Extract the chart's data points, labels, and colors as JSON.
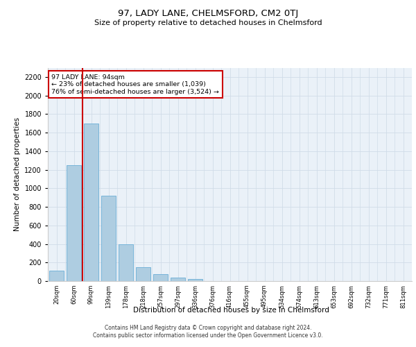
{
  "title": "97, LADY LANE, CHELMSFORD, CM2 0TJ",
  "subtitle": "Size of property relative to detached houses in Chelmsford",
  "xlabel": "Distribution of detached houses by size in Chelmsford",
  "ylabel": "Number of detached properties",
  "categories": [
    "20sqm",
    "60sqm",
    "99sqm",
    "139sqm",
    "178sqm",
    "218sqm",
    "257sqm",
    "297sqm",
    "336sqm",
    "376sqm",
    "416sqm",
    "455sqm",
    "495sqm",
    "534sqm",
    "574sqm",
    "613sqm",
    "653sqm",
    "692sqm",
    "732sqm",
    "771sqm",
    "811sqm"
  ],
  "values": [
    115,
    1250,
    1700,
    920,
    395,
    150,
    72,
    38,
    22,
    0,
    0,
    0,
    0,
    0,
    0,
    0,
    0,
    0,
    0,
    0,
    0
  ],
  "bar_color": "#aecde1",
  "bar_edge_color": "#6aaed6",
  "vline_x": 1.5,
  "vline_color": "#cc0000",
  "annotation_text": "97 LADY LANE: 94sqm\n← 23% of detached houses are smaller (1,039)\n76% of semi-detached houses are larger (3,524) →",
  "annotation_box_color": "#ffffff",
  "annotation_box_edgecolor": "#cc0000",
  "ylim": [
    0,
    2300
  ],
  "yticks": [
    0,
    200,
    400,
    600,
    800,
    1000,
    1200,
    1400,
    1600,
    1800,
    2000,
    2200
  ],
  "grid_color": "#d0dce8",
  "background_color": "#eaf1f8",
  "footer_line1": "Contains HM Land Registry data © Crown copyright and database right 2024.",
  "footer_line2": "Contains public sector information licensed under the Open Government Licence v3.0."
}
